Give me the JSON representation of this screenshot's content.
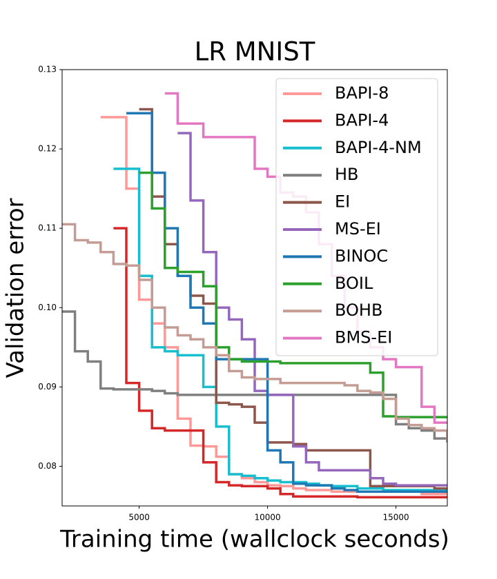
{
  "chart_data": {
    "type": "line",
    "title": "LR MNIST",
    "xlabel": "Training time (wallclock seconds)",
    "ylabel": "Validation error",
    "drawstyle": "steps-post",
    "legend": "upper right",
    "xlim": [
      2000,
      17000
    ],
    "xticks": [
      5000,
      10000,
      15000
    ],
    "ylim": [
      0.075,
      0.13
    ],
    "yticks": [
      0.08,
      0.09,
      {
        "value": 0.1,
        "label": "0.10"
      },
      0.11,
      0.12,
      0.13
    ],
    "x": [
      2000,
      2500,
      3000,
      3500,
      4000,
      4500,
      5000,
      5500,
      6000,
      6500,
      7000,
      7500,
      8000,
      8500,
      9000,
      9500,
      10000,
      10500,
      11000,
      11500,
      12000,
      12500,
      13000,
      13500,
      14000,
      14500,
      15000,
      15500,
      16000,
      16500,
      17000
    ],
    "series": [
      {
        "name": "BAPI-8",
        "color": "#ff9896",
        "values": [
          null,
          null,
          null,
          0.124,
          0.124,
          0.115,
          0.101,
          0.098,
          0.095,
          0.086,
          0.0826,
          0.0825,
          0.0812,
          0.079,
          0.0785,
          0.078,
          0.0776,
          0.0775,
          0.0772,
          0.077,
          0.077,
          0.0768,
          0.0768,
          0.0768,
          0.0768,
          0.0768,
          0.0768,
          0.0768,
          0.0765,
          0.0765,
          0.0765
        ]
      },
      {
        "name": "BAPI-4",
        "color": "#d62728",
        "values": [
          null,
          null,
          null,
          null,
          0.11,
          0.0905,
          0.087,
          0.0848,
          0.0845,
          0.0845,
          0.0845,
          0.0805,
          0.078,
          0.0776,
          0.0775,
          0.0775,
          0.0772,
          0.0765,
          0.0762,
          0.0762,
          0.0762,
          0.0762,
          0.0762,
          0.0761,
          0.0761,
          0.0761,
          0.0761,
          0.0761,
          0.0761,
          0.0761,
          0.0761
        ]
      },
      {
        "name": "BAPI-4-NM",
        "color": "#17becf",
        "values": [
          null,
          null,
          null,
          null,
          0.1175,
          0.1175,
          0.104,
          0.095,
          0.0945,
          0.094,
          0.094,
          0.09,
          0.085,
          0.079,
          0.0788,
          0.0785,
          0.0782,
          0.078,
          0.078,
          0.0778,
          0.0776,
          0.0775,
          0.0775,
          0.0772,
          0.0772,
          0.077,
          0.077,
          0.077,
          0.077,
          0.077,
          0.077
        ]
      },
      {
        "name": "HB",
        "color": "#7f7f7f",
        "values": [
          0.0995,
          0.0945,
          0.0932,
          0.0898,
          0.0897,
          0.0897,
          0.0897,
          0.0895,
          0.0892,
          0.089,
          0.089,
          0.089,
          0.089,
          0.089,
          0.089,
          0.089,
          0.089,
          0.089,
          0.089,
          0.089,
          0.089,
          0.089,
          0.089,
          0.089,
          0.089,
          0.089,
          0.0853,
          0.0848,
          0.0845,
          0.0835,
          0.083
        ]
      },
      {
        "name": "EI",
        "color": "#8c564b",
        "values": [
          null,
          null,
          null,
          null,
          null,
          null,
          0.125,
          0.114,
          0.108,
          0.104,
          0.1015,
          0.1005,
          0.088,
          0.0878,
          0.0875,
          0.0855,
          0.083,
          0.083,
          0.0828,
          0.082,
          0.082,
          0.082,
          0.082,
          0.082,
          0.0775,
          0.0775,
          0.0775,
          0.0775,
          0.0775,
          0.0772,
          0.0772
        ]
      },
      {
        "name": "MS-EI",
        "color": "#9467bd",
        "values": [
          null,
          null,
          null,
          null,
          null,
          null,
          null,
          null,
          null,
          0.122,
          0.1135,
          0.107,
          0.1,
          0.0985,
          0.096,
          0.0895,
          0.089,
          0.089,
          0.0825,
          0.0805,
          0.0795,
          0.0795,
          0.0795,
          0.0795,
          0.0785,
          0.0778,
          0.0776,
          0.0776,
          0.0776,
          0.0776,
          0.0776
        ]
      },
      {
        "name": "BINOC",
        "color": "#1f77b4",
        "values": [
          null,
          null,
          null,
          null,
          null,
          0.1245,
          0.1245,
          0.117,
          0.11,
          0.104,
          0.1,
          0.098,
          0.0935,
          0.0935,
          0.0935,
          0.0935,
          0.082,
          0.0805,
          0.0778,
          0.0776,
          0.0776,
          0.0772,
          0.077,
          0.0768,
          0.0768,
          0.0768,
          0.0768,
          0.0768,
          0.0768,
          0.0768,
          0.0768
        ]
      },
      {
        "name": "BOIL",
        "color": "#2ca02c",
        "values": [
          null,
          null,
          null,
          null,
          null,
          null,
          0.117,
          0.1125,
          0.105,
          0.1045,
          0.1045,
          0.1027,
          0.095,
          0.0935,
          0.0932,
          0.0932,
          0.0932,
          0.093,
          0.093,
          0.093,
          0.093,
          0.093,
          0.093,
          0.093,
          0.0918,
          0.0863,
          0.0862,
          0.0862,
          0.0862,
          0.0862,
          0.0862
        ]
      },
      {
        "name": "BOHB",
        "color": "#c49c94",
        "values": [
          0.1105,
          0.1085,
          0.1082,
          0.107,
          0.1055,
          0.1053,
          0.1035,
          0.1,
          0.0975,
          0.0965,
          0.096,
          0.095,
          0.094,
          0.092,
          0.0912,
          0.091,
          0.091,
          0.0905,
          0.0905,
          0.0905,
          0.0905,
          0.0905,
          0.0902,
          0.0895,
          0.0893,
          0.0885,
          0.086,
          0.0852,
          0.0848,
          0.0845,
          0.0832
        ]
      },
      {
        "name": "BMS-EI",
        "color": "#e377c2",
        "values": [
          null,
          null,
          null,
          null,
          null,
          null,
          null,
          null,
          0.127,
          0.1232,
          0.1232,
          0.1215,
          0.1215,
          0.1215,
          0.1215,
          0.1175,
          0.1165,
          0.1145,
          0.114,
          0.112,
          0.108,
          0.104,
          0.1,
          0.097,
          0.095,
          0.0935,
          0.0925,
          0.0925,
          0.0875,
          0.0855,
          0.0855
        ]
      }
    ]
  }
}
